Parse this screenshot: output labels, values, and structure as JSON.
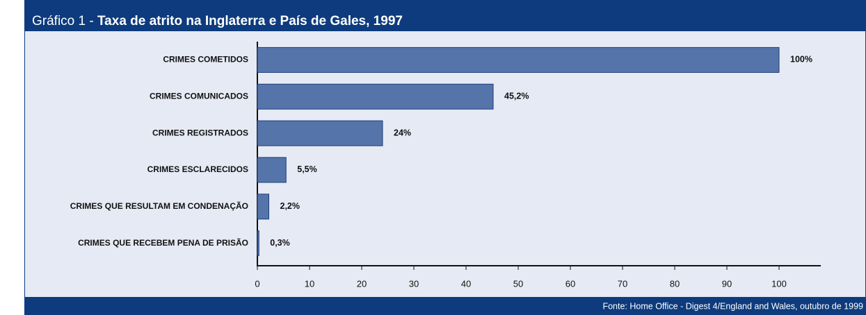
{
  "chart_data": {
    "type": "hbar",
    "label": "Gráfico 1 -",
    "title": "Taxa de atrito na Inglaterra e País de Gales, 1997",
    "source": "Fonte: Home Office - Digest 4/England and Wales, outubro de 1999",
    "categories": [
      "CRIMES COMETIDOS",
      "CRIMES COMUNICADOS",
      "CRIMES REGISTRADOS",
      "CRIMES ESCLARECIDOS",
      "CRIMES QUE RESULTAM EM CONDENAÇÃO",
      "CRIMES QUE RECEBEM PENA DE PRISÃO"
    ],
    "values": [
      100,
      45.2,
      24,
      5.5,
      2.2,
      0.3
    ],
    "value_labels": [
      "100%",
      "45,2%",
      "24%",
      "5,5%",
      "2,2%",
      "0,3%"
    ],
    "color": "#5574aa",
    "xlim": [
      0,
      108
    ],
    "xticks": [
      0,
      10,
      20,
      30,
      40,
      50,
      60,
      70,
      80,
      90,
      100
    ]
  }
}
